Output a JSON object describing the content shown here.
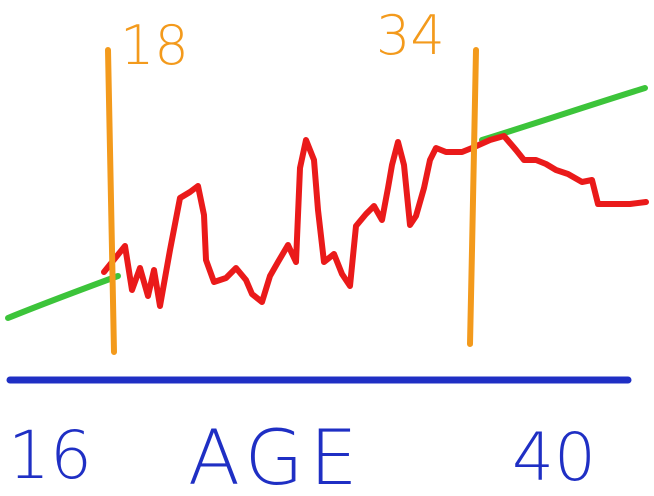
{
  "labels": {
    "marker_left": "18",
    "marker_right": "34",
    "axis_start": "16",
    "axis_title": "AGE",
    "axis_end": "40"
  },
  "colors": {
    "background": "#ffffff",
    "marker_lines": "#f39a1c",
    "marker_text": "#f39a1c",
    "trend_line": "#3cc43a",
    "fluctuating_line": "#ea1a1a",
    "axis_line": "#1f2fc4",
    "axis_text": "#1f2fc4"
  }
}
